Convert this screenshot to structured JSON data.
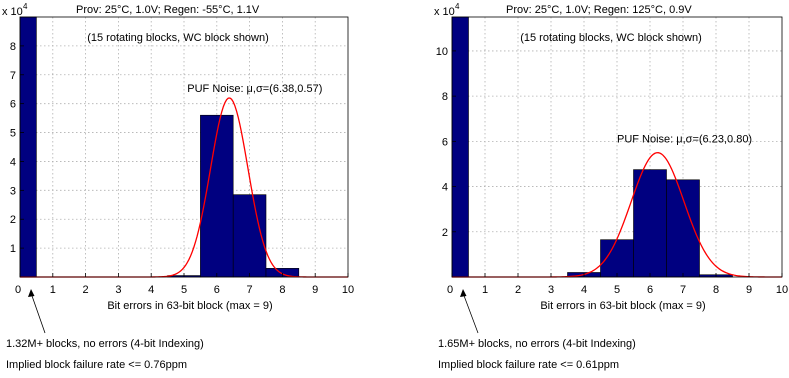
{
  "chart_data": [
    {
      "type": "bar",
      "title": "Prov: 25°C, 1.0V; Regen: -55°C, 1.1V",
      "subtitle": "(15 rotating blocks, WC block shown)",
      "xlabel": "Bit errors in 63-bit block (max = 9)",
      "ylabel": "",
      "y_exponent_label": "x 10",
      "y_exponent_power": "4",
      "xlim": [
        0,
        10
      ],
      "ylim": [
        0,
        9
      ],
      "y_ticks": [
        1,
        2,
        3,
        4,
        5,
        6,
        7,
        8
      ],
      "x_ticks": [
        0,
        1,
        2,
        3,
        4,
        5,
        6,
        7,
        8,
        9,
        10
      ],
      "grid": true,
      "bars": [
        {
          "x": 0,
          "value": 9.0
        },
        {
          "x": 5,
          "value": 0.05
        },
        {
          "x": 6,
          "value": 5.6
        },
        {
          "x": 7,
          "value": 2.85
        },
        {
          "x": 8,
          "value": 0.3
        }
      ],
      "fit": {
        "name": "PUF Noise",
        "mu": 6.38,
        "sigma": 0.57,
        "peak": 6.2
      },
      "fit_label": "PUF Noise: μ,σ=(6.38,0.57)",
      "annotation_line1": "1.32M+ blocks, no errors (4-bit Indexing)",
      "annotation_line2": "Implied block failure rate <= 0.76ppm",
      "colors": {
        "bar": "#000080",
        "fit": "#ff0000",
        "grid": "#b0b0b0"
      }
    },
    {
      "type": "bar",
      "title": "Prov: 25°C, 1.0V; Regen: 125°C, 0.9V",
      "subtitle": "(15 rotating blocks, WC block shown)",
      "xlabel": "Bit errors in 63-bit block (max = 9)",
      "ylabel": "",
      "y_exponent_label": "x 10",
      "y_exponent_power": "4",
      "xlim": [
        0,
        10
      ],
      "ylim": [
        0,
        11.5
      ],
      "y_ticks": [
        2,
        4,
        6,
        8,
        10
      ],
      "x_ticks": [
        0,
        1,
        2,
        3,
        4,
        5,
        6,
        7,
        8,
        9,
        10
      ],
      "grid": true,
      "bars": [
        {
          "x": 0,
          "value": 11.5
        },
        {
          "x": 4,
          "value": 0.2
        },
        {
          "x": 5,
          "value": 1.65
        },
        {
          "x": 6,
          "value": 4.75
        },
        {
          "x": 7,
          "value": 4.3
        },
        {
          "x": 8,
          "value": 0.1
        }
      ],
      "fit": {
        "name": "PUF Noise",
        "mu": 6.23,
        "sigma": 0.8,
        "peak": 5.5
      },
      "fit_label": "PUF Noise: μ,σ=(6.23,0.80)",
      "annotation_line1": "1.65M+ blocks, no errors (4-bit Indexing)",
      "annotation_line2": "Implied block failure rate <= 0.61ppm",
      "colors": {
        "bar": "#000080",
        "fit": "#ff0000",
        "grid": "#b0b0b0"
      }
    }
  ]
}
